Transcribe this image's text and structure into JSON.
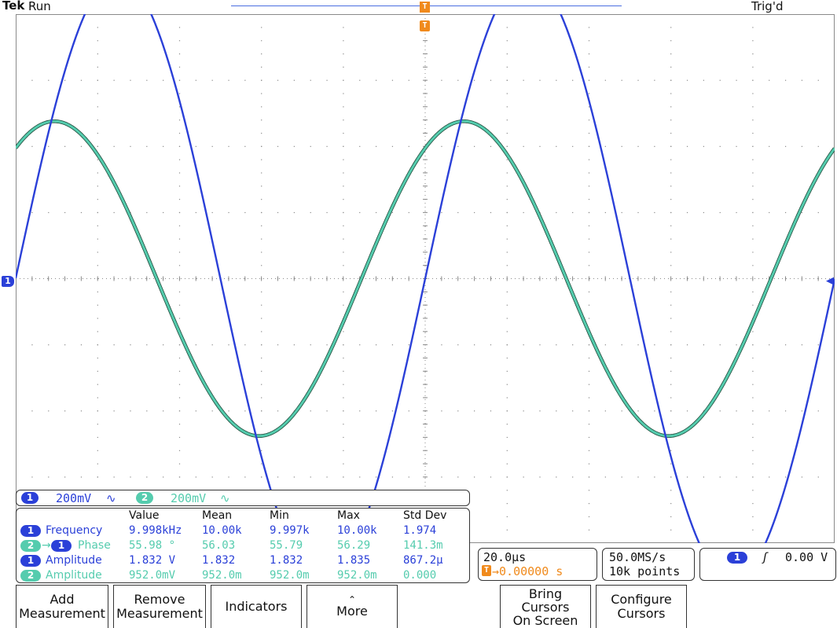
{
  "status": {
    "brand": "Tek",
    "acq_state": "Run",
    "trigger_state": "Trig'd",
    "trigger_marker": "T"
  },
  "colors": {
    "ch1": "#2b40d8",
    "ch2": "#55ccae",
    "trigger": "#f08a1c",
    "grid": "#8a8a8a"
  },
  "channels": [
    {
      "number": "1",
      "scale": "200mV",
      "coupling_icon": "∿"
    },
    {
      "number": "2",
      "scale": "200mV",
      "coupling_icon": "∿"
    }
  ],
  "measurements": {
    "headers": [
      "Value",
      "Mean",
      "Min",
      "Max",
      "Std Dev"
    ],
    "rows": [
      {
        "source": "1",
        "source2": "",
        "name": "Frequency",
        "values": [
          "9.998kHz",
          "10.00k",
          "9.997k",
          "10.00k",
          "1.974"
        ]
      },
      {
        "source": "2",
        "source2": "1",
        "name": "Phase",
        "values": [
          "55.98 °",
          "56.03",
          "55.79",
          "56.29",
          "141.3m"
        ]
      },
      {
        "source": "1",
        "source2": "",
        "name": "Amplitude",
        "values": [
          "1.832 V",
          "1.832",
          "1.832",
          "1.835",
          "867.2μ"
        ]
      },
      {
        "source": "2",
        "source2": "",
        "name": "Amplitude",
        "values": [
          "952.0mV",
          "952.0m",
          "952.0m",
          "952.0m",
          "0.000"
        ]
      }
    ]
  },
  "horizontal": {
    "time_per_div": "20.0μs",
    "trigger_position_icon": "T",
    "trigger_position": "→0.00000 s"
  },
  "acquisition": {
    "sample_rate": "50.0MS/s",
    "record_length": "10k points"
  },
  "trigger": {
    "source": "1",
    "slope_icon": "rising-edge-icon",
    "slope_glyph": "ʃ",
    "level": "0.00 V"
  },
  "softkeys": [
    {
      "line1": "Add",
      "line2": "Measurement"
    },
    {
      "line1": "Remove",
      "line2": "Measurement"
    },
    {
      "line1": "Indicators",
      "line2": ""
    },
    {
      "line1": "⌃",
      "line2": "More"
    },
    {
      "line1": "Bring",
      "line2": "Cursors",
      "line3": "On Screen"
    },
    {
      "line1": "Configure",
      "line2": "Cursors"
    }
  ],
  "waveforms": {
    "ch1": {
      "frequency_khz": 9.998,
      "amplitude_v": 1.832,
      "phase_deg": 0,
      "volts_per_div": 0.2
    },
    "ch2": {
      "frequency_khz": 9.998,
      "amplitude_v": 0.952,
      "phase_deg": 55.98,
      "volts_per_div": 0.2
    },
    "time_per_div_us": 20,
    "divisions_x": 10,
    "divisions_y": 8
  },
  "ground_markers": {
    "ch1": "1",
    "ch1_right": "◀"
  }
}
